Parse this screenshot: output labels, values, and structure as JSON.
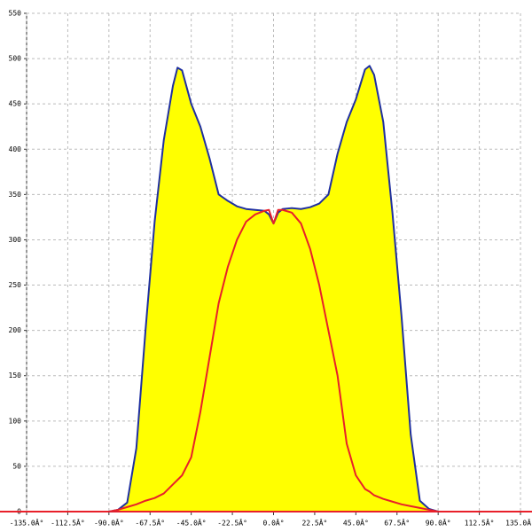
{
  "chart_data": {
    "type": "area-line",
    "x": [
      -90,
      -85,
      -80,
      -75,
      -70,
      -65,
      -60,
      -55,
      -52.5,
      -50,
      -45,
      -40,
      -35,
      -30,
      -25,
      -20,
      -15,
      -10,
      -5,
      -2.5,
      0,
      2.5,
      5,
      10,
      15,
      20,
      25,
      30,
      35,
      40,
      45,
      50,
      52.5,
      55,
      60,
      65,
      70,
      75,
      80,
      85,
      90
    ],
    "series": [
      {
        "color": "#1f2fa0",
        "fill": "#ffff00",
        "values": [
          0,
          2,
          10,
          70,
          200,
          320,
          410,
          470,
          490,
          487,
          450,
          425,
          390,
          350,
          343,
          337,
          334,
          333,
          332,
          328,
          318,
          330,
          334,
          335,
          334,
          336,
          340,
          350,
          395,
          430,
          455,
          488,
          492,
          482,
          430,
          330,
          215,
          85,
          12,
          3,
          0
        ]
      },
      {
        "color": "#e8202a",
        "values": [
          0,
          2,
          5,
          8,
          12,
          15,
          20,
          30,
          35,
          40,
          60,
          110,
          170,
          230,
          270,
          300,
          320,
          328,
          332,
          333,
          318,
          333,
          333,
          330,
          318,
          290,
          250,
          200,
          150,
          75,
          40,
          25,
          22,
          18,
          14,
          11,
          8,
          6,
          4,
          2,
          0
        ]
      }
    ],
    "xlim": [
      -135,
      135
    ],
    "xticks": [
      {
        "value": -135,
        "label": "-135.0Â°"
      },
      {
        "value": -112.5,
        "label": "-112.5Â°"
      },
      {
        "value": -90,
        "label": "-90.0Â°"
      },
      {
        "value": -67.5,
        "label": "-67.5Â°"
      },
      {
        "value": -45,
        "label": "-45.0Â°"
      },
      {
        "value": -22.5,
        "label": "-22.5Â°"
      },
      {
        "value": 0,
        "label": "0.0Â°"
      },
      {
        "value": 22.5,
        "label": "22.5Â°"
      },
      {
        "value": 45,
        "label": "45.0Â°"
      },
      {
        "value": 67.5,
        "label": "67.5Â°"
      },
      {
        "value": 90,
        "label": "90.0Â°"
      },
      {
        "value": 112.5,
        "label": "112.5Â°"
      },
      {
        "value": 135,
        "label": "135.0Â°"
      }
    ],
    "ylim": [
      0,
      550
    ],
    "yticks": [
      0,
      50,
      100,
      150,
      200,
      250,
      300,
      350,
      400,
      450,
      500,
      550
    ],
    "grid": true
  }
}
